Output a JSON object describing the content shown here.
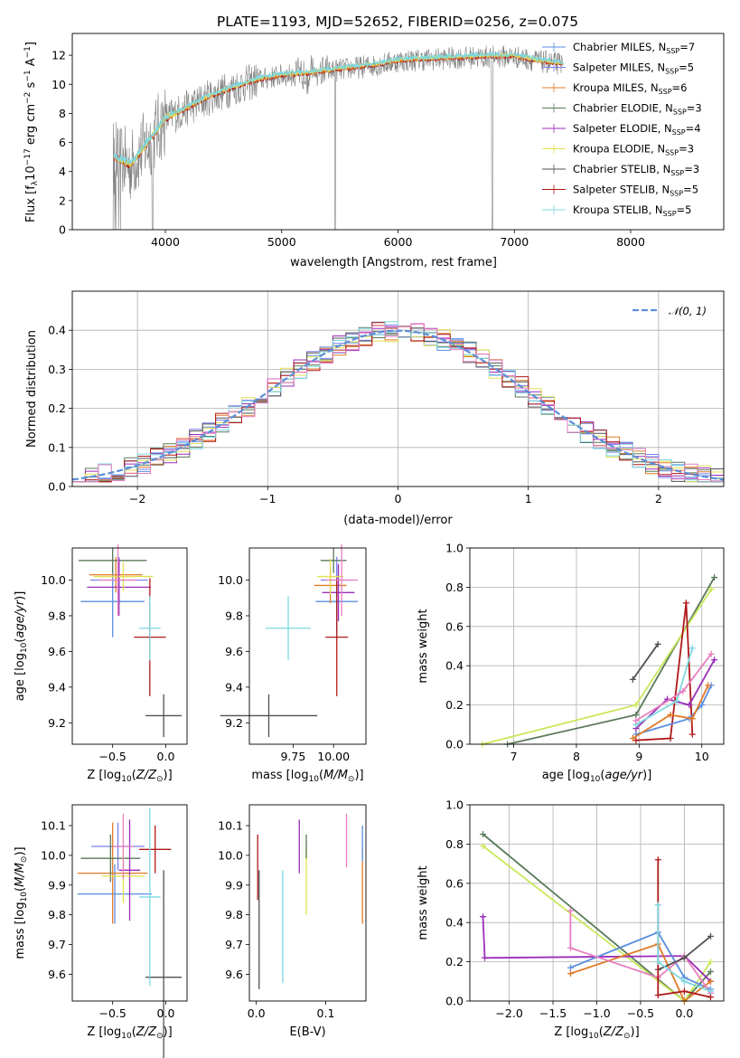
{
  "title": "PLATE=1193, MJD=52652, FIBERID=0256, z=0.075",
  "colors": {
    "Chabrier MILES": "#5b8ee0",
    "Salpeter MILES": "#7b7ff0",
    "Kroupa MILES": "#e07b28",
    "Chabrier ELODIE": "#5a7a5a",
    "Salpeter ELODIE": "#9a2eb8",
    "Kroupa ELODIE": "#e4e050",
    "Chabrier STELIB": "#505050",
    "Salpeter STELIB": "#b01818",
    "Kroupa STELIB": "#7dd8e0",
    "data": "#808080",
    "normal": "#5b8ed8",
    "pink": "#e77fbf",
    "lime": "#c9e85a"
  },
  "chart_data": [
    {
      "id": "spectrum",
      "type": "line",
      "xlabel": "wavelength [Angstrom, rest frame]",
      "ylabel": "Flux [f_λ 10^-17 erg cm^-2 s^-1 A^-1]",
      "xlim": [
        3200,
        8800
      ],
      "ylim": [
        0,
        13.5
      ],
      "xticks": [
        "4000",
        "5000",
        "6000",
        "7000",
        "8000"
      ],
      "yticks": [
        "0",
        "2",
        "4",
        "6",
        "8",
        "10",
        "12"
      ],
      "continuum_x": [
        3550,
        3700,
        3900,
        4000,
        4200,
        4400,
        4600,
        4800,
        5000,
        5200,
        5500,
        5800,
        6000,
        6200,
        6500,
        6800,
        7000,
        7200,
        7400
      ],
      "continuum_y": [
        5.0,
        4.4,
        6.5,
        7.6,
        8.4,
        9.2,
        9.8,
        10.3,
        10.6,
        10.7,
        11.0,
        11.3,
        11.6,
        11.7,
        11.8,
        11.9,
        11.9,
        11.6,
        11.4
      ],
      "legend": [
        {
          "name": "Chabrier MILES",
          "n": "7"
        },
        {
          "name": "Salpeter MILES",
          "n": "5"
        },
        {
          "name": "Kroupa MILES",
          "n": "6"
        },
        {
          "name": "Chabrier ELODIE",
          "n": "3"
        },
        {
          "name": "Salpeter ELODIE",
          "n": "4"
        },
        {
          "name": "Kroupa ELODIE",
          "n": "3"
        },
        {
          "name": "Chabrier STELIB",
          "n": "3"
        },
        {
          "name": "Salpeter STELIB",
          "n": "5"
        },
        {
          "name": "Kroupa STELIB",
          "n": "5"
        }
      ],
      "legend_sub": "SSP",
      "legend_placement": "right"
    },
    {
      "id": "residuals",
      "type": "step",
      "xlabel": "(data-model)/error",
      "ylabel": "Normed distribution",
      "xlim": [
        -2.5,
        2.5
      ],
      "ylim": [
        0,
        0.5
      ],
      "xticks": [
        "−2",
        "−1",
        "0",
        "1",
        "2"
      ],
      "yticks": [
        "0.0",
        "0.1",
        "0.2",
        "0.3",
        "0.4"
      ],
      "bin_width": 0.1,
      "legend": "𝒩(0, 1)",
      "legend_placement": "top-right",
      "grid": true
    },
    {
      "id": "age-vs-Z",
      "type": "errorbar",
      "xlabel": "Z [log10(Z/Z⊙)]",
      "ylabel": "age  [log10(age/yr)]",
      "xlim": [
        -0.88,
        0.2
      ],
      "ylim": [
        9.08,
        10.18
      ],
      "xticks": [
        {
          "v": -0.5,
          "t": "−0.5"
        },
        {
          "v": 0.0,
          "t": "0.0"
        }
      ],
      "yticks": [
        {
          "v": 9.2,
          "t": "9.2"
        },
        {
          "v": 9.4,
          "t": "9.4"
        },
        {
          "v": 9.6,
          "t": "9.6"
        },
        {
          "v": 9.8,
          "t": "9.8"
        },
        {
          "v": 10.0,
          "t": "10.0"
        }
      ],
      "points": [
        {
          "c": "Chabrier MILES",
          "x": -0.5,
          "xe": 0.3,
          "y": 9.88,
          "ye": 0.2
        },
        {
          "c": "Salpeter MILES",
          "x": -0.44,
          "xe": 0.27,
          "y": 10.0,
          "ye": 0.13
        },
        {
          "c": "Kroupa MILES",
          "x": -0.47,
          "xe": 0.25,
          "y": 10.03,
          "ye": 0.1
        },
        {
          "c": "Chabrier ELODIE",
          "x": -0.5,
          "xe": 0.32,
          "y": 10.11,
          "ye": 0.07
        },
        {
          "c": "Salpeter ELODIE",
          "x": -0.44,
          "xe": 0.3,
          "y": 9.96,
          "ye": 0.16
        },
        {
          "c": "Kroupa ELODIE",
          "x": -0.4,
          "xe": 0.28,
          "y": 10.02,
          "ye": 0.08
        },
        {
          "c": "Chabrier STELIB",
          "x": -0.02,
          "xe": 0.17,
          "y": 9.24,
          "ye": 0.12
        },
        {
          "c": "Salpeter STELIB",
          "x": -0.15,
          "xe": 0.15,
          "y": 9.68,
          "ye": 0.33
        },
        {
          "c": "Kroupa STELIB",
          "x": -0.15,
          "xe": 0.1,
          "y": 9.73,
          "ye": 0.18
        },
        {
          "c": "pink",
          "x": -0.45,
          "xe": 0.18,
          "y": 10.0,
          "ye": 0.2
        }
      ]
    },
    {
      "id": "age-vs-mass",
      "type": "errorbar",
      "xlabel": "mass [log10(M/M⊙)]",
      "ylabel": "",
      "xlim": [
        9.48,
        10.2
      ],
      "ylim": [
        9.08,
        10.18
      ],
      "xticks": [
        {
          "v": 9.75,
          "t": "9.75"
        },
        {
          "v": 10.0,
          "t": "10.00"
        }
      ],
      "yticks": [
        {
          "v": 9.2,
          "t": "9.2"
        },
        {
          "v": 9.4,
          "t": "9.4"
        },
        {
          "v": 9.6,
          "t": "9.6"
        },
        {
          "v": 9.8,
          "t": "9.8"
        },
        {
          "v": 10.0,
          "t": "10.0"
        }
      ],
      "points": [
        {
          "c": "Chabrier MILES",
          "x": 10.02,
          "xe": 0.13,
          "y": 9.88,
          "ye": 0.2
        },
        {
          "c": "Salpeter MILES",
          "x": 10.02,
          "xe": 0.1,
          "y": 10.0,
          "ye": 0.13
        },
        {
          "c": "Kroupa MILES",
          "x": 9.98,
          "xe": 0.1,
          "y": 9.97,
          "ye": 0.1
        },
        {
          "c": "Chabrier ELODIE",
          "x": 10.0,
          "xe": 0.08,
          "y": 10.11,
          "ye": 0.07
        },
        {
          "c": "Salpeter ELODIE",
          "x": 10.03,
          "xe": 0.1,
          "y": 9.93,
          "ye": 0.16
        },
        {
          "c": "Kroupa ELODIE",
          "x": 9.98,
          "xe": 0.08,
          "y": 10.02,
          "ye": 0.1
        },
        {
          "c": "Chabrier STELIB",
          "x": 9.6,
          "xe": 0.3,
          "y": 9.24,
          "ye": 0.12
        },
        {
          "c": "Salpeter STELIB",
          "x": 10.02,
          "xe": 0.07,
          "y": 9.68,
          "ye": 0.33
        },
        {
          "c": "Kroupa STELIB",
          "x": 9.72,
          "xe": 0.14,
          "y": 9.73,
          "ye": 0.18
        },
        {
          "c": "pink",
          "x": 10.05,
          "xe": 0.1,
          "y": 10.0,
          "ye": 0.2
        }
      ]
    },
    {
      "id": "weight-vs-age",
      "type": "line",
      "xlabel": "age  [log10(age/yr)]",
      "ylabel": "mass weight",
      "xlim": [
        6.3,
        10.35
      ],
      "ylim": [
        0,
        1.0
      ],
      "xticks": [
        {
          "v": 7,
          "t": "7"
        },
        {
          "v": 8,
          "t": "8"
        },
        {
          "v": 9,
          "t": "9"
        },
        {
          "v": 10,
          "t": "10"
        }
      ],
      "yticks": [
        {
          "v": 0,
          "t": "0.0"
        },
        {
          "v": 0.2,
          "t": "0.2"
        },
        {
          "v": 0.4,
          "t": "0.4"
        },
        {
          "v": 0.6,
          "t": "0.6"
        },
        {
          "v": 0.8,
          "t": "0.8"
        },
        {
          "v": 1.0,
          "t": "1.0"
        }
      ],
      "grid": true,
      "series": [
        {
          "c": "Chabrier ELODIE",
          "x": [
            6.9,
            8.95,
            10.2
          ],
          "y": [
            0.0,
            0.15,
            0.85
          ]
        },
        {
          "c": "lime",
          "x": [
            6.5,
            8.95,
            10.15
          ],
          "y": [
            0.0,
            0.2,
            0.79
          ]
        },
        {
          "c": "Chabrier STELIB",
          "x": [
            8.9,
            9.3
          ],
          "y": [
            0.33,
            0.51
          ]
        },
        {
          "c": "Salpeter STELIB",
          "x": [
            8.95,
            9.5,
            9.75,
            9.85
          ],
          "y": [
            0.02,
            0.03,
            0.72,
            0.05
          ]
        },
        {
          "c": "Chabrier MILES",
          "x": [
            8.95,
            9.8,
            10.0,
            10.15
          ],
          "y": [
            0.05,
            0.13,
            0.2,
            0.3
          ]
        },
        {
          "c": "Kroupa MILES",
          "x": [
            8.9,
            9.5,
            9.85,
            10.1
          ],
          "y": [
            0.03,
            0.15,
            0.13,
            0.3
          ]
        },
        {
          "c": "Salpeter ELODIE",
          "x": [
            8.95,
            9.45,
            9.8,
            10.2
          ],
          "y": [
            0.08,
            0.23,
            0.2,
            0.43
          ]
        },
        {
          "c": "Kroupa STELIB",
          "x": [
            8.95,
            9.6,
            9.85
          ],
          "y": [
            0.1,
            0.22,
            0.49
          ]
        },
        {
          "c": "pink",
          "x": [
            8.95,
            9.7,
            10.15
          ],
          "y": [
            0.12,
            0.27,
            0.46
          ]
        }
      ]
    },
    {
      "id": "mass-vs-Z",
      "type": "errorbar",
      "xlabel": "Z [log10(Z/Z⊙)]",
      "ylabel": "mass [log10(M/M⊙)]",
      "xlim": [
        -0.88,
        0.2
      ],
      "ylim": [
        9.51,
        10.17
      ],
      "xticks": [
        {
          "v": -0.5,
          "t": "−0.5"
        },
        {
          "v": 0.0,
          "t": "0.0"
        }
      ],
      "yticks": [
        {
          "v": 9.6,
          "t": "9.6"
        },
        {
          "v": 9.7,
          "t": "9.7"
        },
        {
          "v": 9.8,
          "t": "9.8"
        },
        {
          "v": 9.9,
          "t": "9.9"
        },
        {
          "v": 10.0,
          "t": "10.0"
        },
        {
          "v": 10.1,
          "t": "10.1"
        }
      ],
      "points": [
        {
          "c": "Chabrier MILES",
          "x": -0.48,
          "xe": 0.35,
          "y": 9.87,
          "ye": 0.1
        },
        {
          "c": "Salpeter MILES",
          "x": -0.45,
          "xe": 0.25,
          "y": 10.03,
          "ye": 0.08
        },
        {
          "c": "Kroupa MILES",
          "x": -0.5,
          "xe": 0.33,
          "y": 9.94,
          "ye": 0.17
        },
        {
          "c": "Chabrier ELODIE",
          "x": -0.52,
          "xe": 0.28,
          "y": 9.99,
          "ye": 0.08
        },
        {
          "c": "Salpeter ELODIE",
          "x": -0.34,
          "xe": 0.1,
          "y": 9.95,
          "ye": 0.17
        },
        {
          "c": "Kroupa ELODIE",
          "x": -0.4,
          "xe": 0.2,
          "y": 9.93,
          "ye": 0.09
        },
        {
          "c": "Chabrier STELIB",
          "x": -0.02,
          "xe": 0.17,
          "y": 9.59,
          "ye": 0.36
        },
        {
          "c": "Salpeter STELIB",
          "x": -0.1,
          "xe": 0.15,
          "y": 10.02,
          "ye": 0.08
        },
        {
          "c": "Kroupa STELIB",
          "x": -0.15,
          "xe": 0.1,
          "y": 9.86,
          "ye": 0.3
        },
        {
          "c": "pink",
          "x": -0.4,
          "xe": 0.1,
          "y": 10.03,
          "ye": 0.11
        }
      ]
    },
    {
      "id": "mass-vs-ebv",
      "type": "errorbar",
      "xlabel": "E(B-V)",
      "ylabel": "",
      "xlim": [
        -0.01,
        0.158
      ],
      "ylim": [
        9.51,
        10.17
      ],
      "xticks": [
        {
          "v": 0.0,
          "t": "0.0"
        },
        {
          "v": 0.1,
          "t": "0.1"
        }
      ],
      "yticks": [
        {
          "v": 9.6,
          "t": "9.6"
        },
        {
          "v": 9.7,
          "t": "9.7"
        },
        {
          "v": 9.8,
          "t": "9.8"
        },
        {
          "v": 9.9,
          "t": "9.9"
        },
        {
          "v": 10.0,
          "t": "10.0"
        },
        {
          "v": 10.1,
          "t": "10.1"
        }
      ],
      "points": [
        {
          "c": "Chabrier STELIB",
          "x": 0.004,
          "y": 9.75,
          "ye": 0.2
        },
        {
          "c": "Salpeter STELIB",
          "x": 0.002,
          "y": 9.96,
          "ye": 0.11
        },
        {
          "c": "Kroupa STELIB",
          "x": 0.038,
          "y": 9.76,
          "ye": 0.19
        },
        {
          "c": "Salpeter ELODIE",
          "x": 0.062,
          "y": 10.03,
          "ye": 0.09
        },
        {
          "c": "Kroupa ELODIE",
          "x": 0.072,
          "y": 9.92,
          "ye": 0.12
        },
        {
          "c": "Chabrier ELODIE",
          "x": 0.072,
          "y": 10.03,
          "ye": 0.04
        },
        {
          "c": "pink",
          "x": 0.13,
          "y": 10.05,
          "ye": 0.09
        },
        {
          "c": "Kroupa MILES",
          "x": 0.153,
          "y": 9.9,
          "ye": 0.13
        },
        {
          "c": "Chabrier MILES",
          "x": 0.153,
          "y": 10.04,
          "ye": 0.06
        }
      ]
    },
    {
      "id": "weight-vs-Z",
      "type": "line",
      "xlabel": "Z [log10(Z/Z⊙)]",
      "ylabel": "mass weight",
      "xlim": [
        -2.45,
        0.45
      ],
      "ylim": [
        0,
        1.0
      ],
      "xticks": [
        {
          "v": -2.0,
          "t": "−2.0"
        },
        {
          "v": -1.5,
          "t": "−1.5"
        },
        {
          "v": -1.0,
          "t": "−1.0"
        },
        {
          "v": -0.5,
          "t": "−0.5"
        },
        {
          "v": 0.0,
          "t": "0.0"
        }
      ],
      "yticks": [
        {
          "v": 0,
          "t": "0.0"
        },
        {
          "v": 0.2,
          "t": "0.2"
        },
        {
          "v": 0.4,
          "t": "0.4"
        },
        {
          "v": 0.6,
          "t": "0.6"
        },
        {
          "v": 0.8,
          "t": "0.8"
        },
        {
          "v": 1.0,
          "t": "1.0"
        }
      ],
      "grid": true,
      "series": [
        {
          "c": "Chabrier ELODIE",
          "x": [
            -2.3,
            0.0,
            0.3
          ],
          "y": [
            0.85,
            0.0,
            0.15
          ]
        },
        {
          "c": "lime",
          "x": [
            -2.3,
            0.0,
            0.3
          ],
          "y": [
            0.79,
            0.0,
            0.2
          ]
        },
        {
          "c": "Salpeter ELODIE",
          "x": [
            -2.3,
            -2.28,
            0.0,
            0.3
          ],
          "y": [
            0.43,
            0.22,
            0.23,
            0.1
          ]
        },
        {
          "c": "Chabrier MILES",
          "x": [
            -1.3,
            -0.3,
            0.0,
            0.3
          ],
          "y": [
            0.17,
            0.35,
            0.12,
            0.06
          ]
        },
        {
          "c": "Kroupa MILES",
          "x": [
            -1.3,
            -0.3,
            0.0,
            0.3
          ],
          "y": [
            0.14,
            0.29,
            0.0,
            0.1
          ]
        },
        {
          "c": "pink",
          "x": [
            -1.3,
            -1.3,
            -0.3,
            0.0,
            0.3
          ],
          "y": [
            0.46,
            0.27,
            0.12,
            0.23,
            0.04
          ]
        },
        {
          "c": "Chabrier STELIB",
          "x": [
            -0.3,
            0.0,
            0.3
          ],
          "y": [
            0.16,
            0.22,
            0.33
          ]
        },
        {
          "c": "Salpeter STELIB",
          "x": [
            -0.3,
            -0.3,
            0.0,
            0.3
          ],
          "y": [
            0.72,
            0.03,
            0.05,
            0.02
          ]
        },
        {
          "c": "Kroupa STELIB",
          "x": [
            -0.3,
            -0.3,
            0.0,
            0.3
          ],
          "y": [
            0.49,
            0.2,
            0.1,
            0.05
          ]
        }
      ]
    }
  ]
}
